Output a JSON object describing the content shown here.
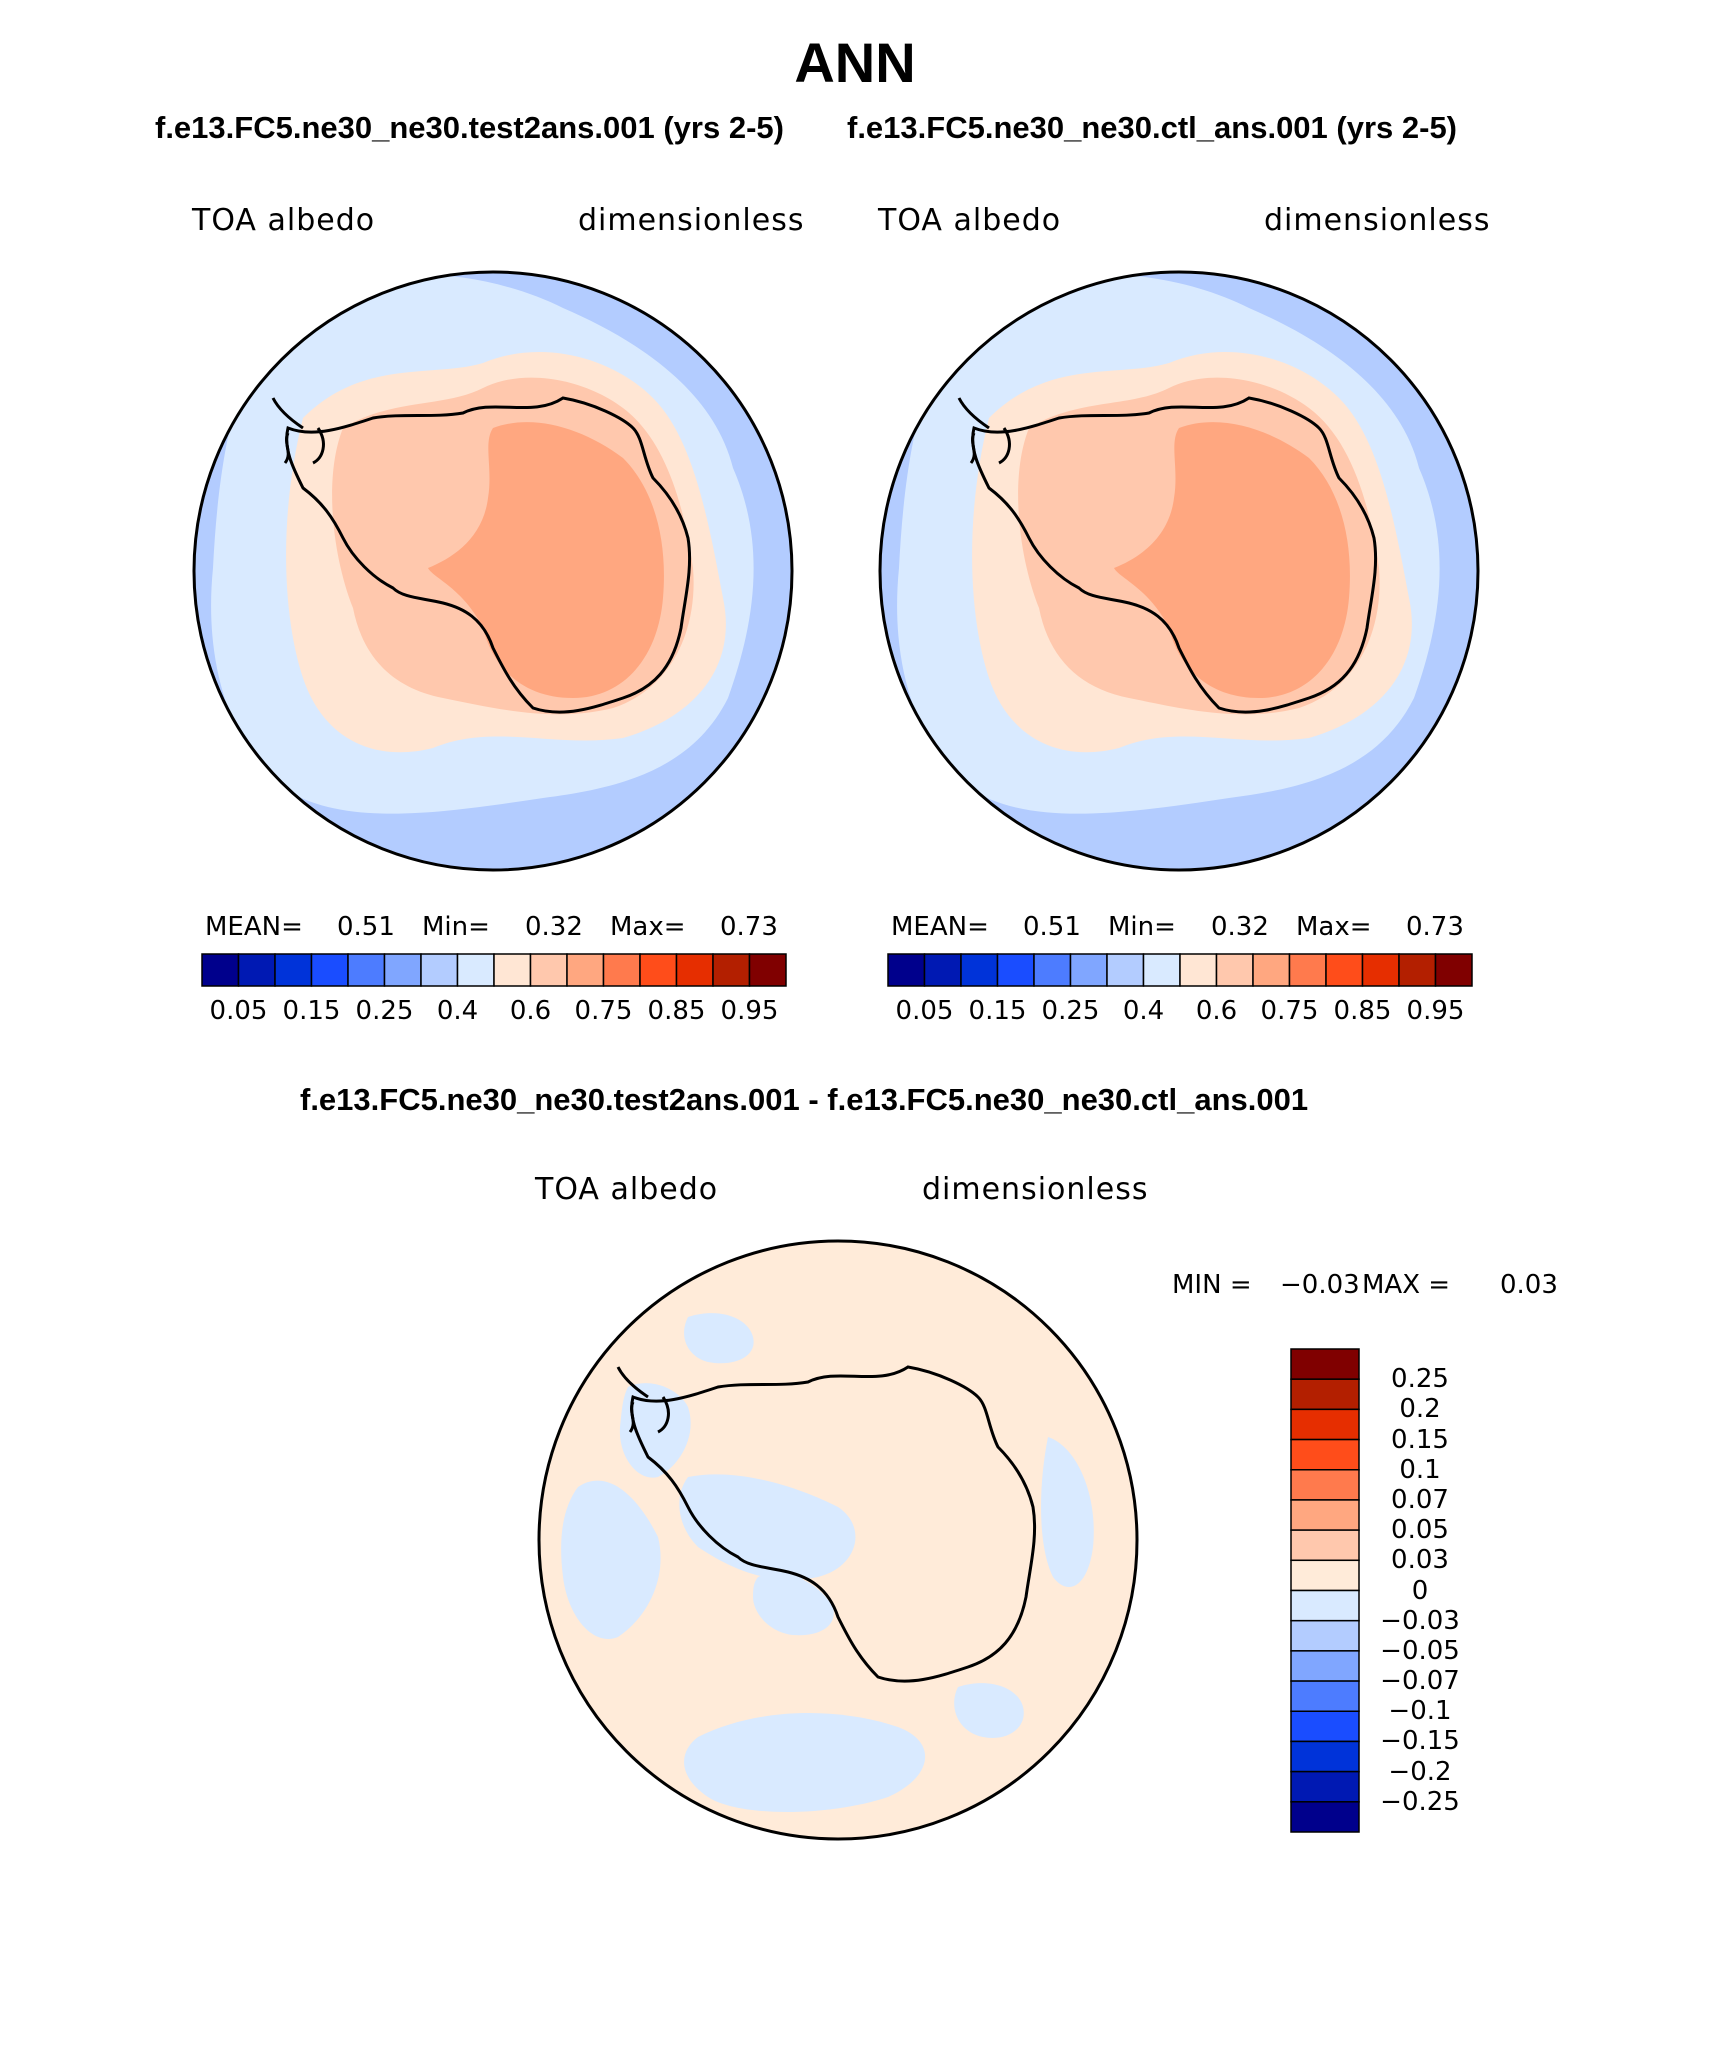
{
  "figure": {
    "title": "ANN",
    "test_case_title": "f.e13.FC5.ne30_ne30.test2ans.001 (yrs 2-5)",
    "ctl_case_title": "f.e13.FC5.ne30_ne30.ctl_ans.001 (yrs 2-5)",
    "diff_title": "f.e13.FC5.ne30_ne30.test2ans.001 - f.e13.FC5.ne30_ne30.ctl_ans.001"
  },
  "panels": {
    "test": {
      "variable": "TOA albedo",
      "units": "dimensionless",
      "stats": {
        "mean_label": "MEAN=",
        "mean": "0.51",
        "min_label": "Min=",
        "min": "0.32",
        "max_label": "Max=",
        "max": "0.73"
      }
    },
    "ctl": {
      "variable": "TOA albedo",
      "units": "dimensionless",
      "stats": {
        "mean_label": "MEAN=",
        "mean": "0.51",
        "min_label": "Min=",
        "min": "0.32",
        "max_label": "Max=",
        "max": "0.73"
      }
    },
    "diff": {
      "variable": "TOA albedo",
      "units": "dimensionless",
      "stats": {
        "min_label": "MIN =",
        "min": "−0.03",
        "max_label": "MAX =",
        "max": "0.03"
      }
    }
  },
  "colorbar_main": {
    "colors": [
      "#00008c",
      "#0019b3",
      "#0033d9",
      "#1a4dff",
      "#4d7cff",
      "#80a6ff",
      "#b3ccff",
      "#d9eaff",
      "#ffe6d4",
      "#ffc8ad",
      "#ffa780",
      "#ff7a4d",
      "#ff4d1a",
      "#e62e00",
      "#b31f00",
      "#800000"
    ],
    "tick_labels": [
      "0.05",
      "0.15",
      "0.25",
      "0.4",
      "0.6",
      "0.75",
      "0.85",
      "0.95"
    ]
  },
  "colorbar_diff": {
    "colors": [
      "#800000",
      "#b31f00",
      "#e62e00",
      "#ff4d1a",
      "#ff7a4d",
      "#ffa780",
      "#ffc8ad",
      "#ffebd9",
      "#d9eaff",
      "#b3ccff",
      "#80a6ff",
      "#4d7cff",
      "#1a4dff",
      "#0033d9",
      "#0019b3",
      "#00008c"
    ],
    "tick_labels": [
      "0.25",
      "0.2",
      "0.15",
      "0.1",
      "0.07",
      "0.05",
      "0.03",
      "0",
      "−0.03",
      "−0.05",
      "−0.07",
      "−0.1",
      "−0.15",
      "−0.2",
      "−0.25"
    ]
  },
  "map_colors": {
    "ocean_outer": "#b3ccff",
    "ocean_inner": "#d9eaff",
    "sea_ice": "#ffe6d4",
    "coast": "#ffc8ad",
    "plateau": "#ffa780",
    "diff_background": "#ffebd9",
    "diff_negative": "#d9eaff"
  }
}
